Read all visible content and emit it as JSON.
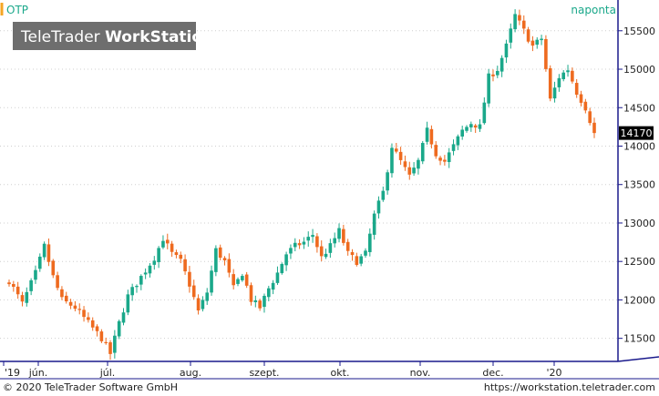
{
  "header": {
    "symbol": "OTP",
    "interval": "naponta",
    "watermark_prefix": "TeleTrader ",
    "watermark_bold": "WorkStation"
  },
  "footer": {
    "copyright": "© 2020 TeleTrader Software GmbH",
    "url": "https://workstation.teletrader.com"
  },
  "colors": {
    "up": "#1aa88a",
    "down": "#ee6a1f",
    "grid": "#cfcfcf",
    "axis": "#1a1a8c",
    "accent": "#f5a623",
    "last_price_bg": "#000000"
  },
  "chart_data": {
    "type": "candlestick",
    "ylim": [
      11200,
      15900
    ],
    "yticks": [
      11500,
      12000,
      12500,
      13000,
      13500,
      14000,
      14500,
      15000,
      15500
    ],
    "xticks": [
      "'19",
      "jún.",
      "júl.",
      "aug.",
      "szept.",
      "okt.",
      "nov.",
      "dec.",
      "'20"
    ],
    "last_price": "14170",
    "close_path": [
      [
        0,
        12250
      ],
      [
        3,
        11950
      ],
      [
        6,
        12350
      ],
      [
        8,
        12700
      ],
      [
        10,
        12300
      ],
      [
        12,
        12000
      ],
      [
        15,
        11900
      ],
      [
        18,
        11700
      ],
      [
        21,
        11500
      ],
      [
        23,
        11300
      ],
      [
        25,
        11700
      ],
      [
        27,
        12050
      ],
      [
        30,
        12300
      ],
      [
        33,
        12550
      ],
      [
        35,
        12800
      ],
      [
        37,
        12600
      ],
      [
        39,
        12500
      ],
      [
        41,
        12200
      ],
      [
        43,
        11850
      ],
      [
        45,
        12100
      ],
      [
        47,
        12650
      ],
      [
        49,
        12500
      ],
      [
        51,
        12150
      ],
      [
        53,
        12350
      ],
      [
        55,
        12000
      ],
      [
        57,
        11900
      ],
      [
        59,
        12150
      ],
      [
        61,
        12350
      ],
      [
        63,
        12600
      ],
      [
        65,
        12700
      ],
      [
        67,
        12750
      ],
      [
        69,
        12850
      ],
      [
        71,
        12550
      ],
      [
        73,
        12700
      ],
      [
        75,
        12900
      ],
      [
        77,
        12600
      ],
      [
        79,
        12500
      ],
      [
        81,
        12600
      ],
      [
        83,
        13100
      ],
      [
        85,
        13400
      ],
      [
        87,
        14000
      ],
      [
        89,
        13800
      ],
      [
        91,
        13600
      ],
      [
        93,
        13800
      ],
      [
        95,
        14200
      ],
      [
        97,
        13900
      ],
      [
        99,
        13800
      ],
      [
        101,
        14000
      ],
      [
        103,
        14200
      ],
      [
        105,
        14300
      ],
      [
        107,
        14250
      ],
      [
        109,
        14900
      ],
      [
        111,
        15000
      ],
      [
        113,
        15300
      ],
      [
        115,
        15700
      ],
      [
        117,
        15500
      ],
      [
        119,
        15300
      ],
      [
        121,
        15400
      ],
      [
        123,
        14600
      ],
      [
        125,
        14900
      ],
      [
        127,
        15000
      ],
      [
        129,
        14700
      ],
      [
        131,
        14500
      ],
      [
        133,
        14170
      ]
    ]
  }
}
